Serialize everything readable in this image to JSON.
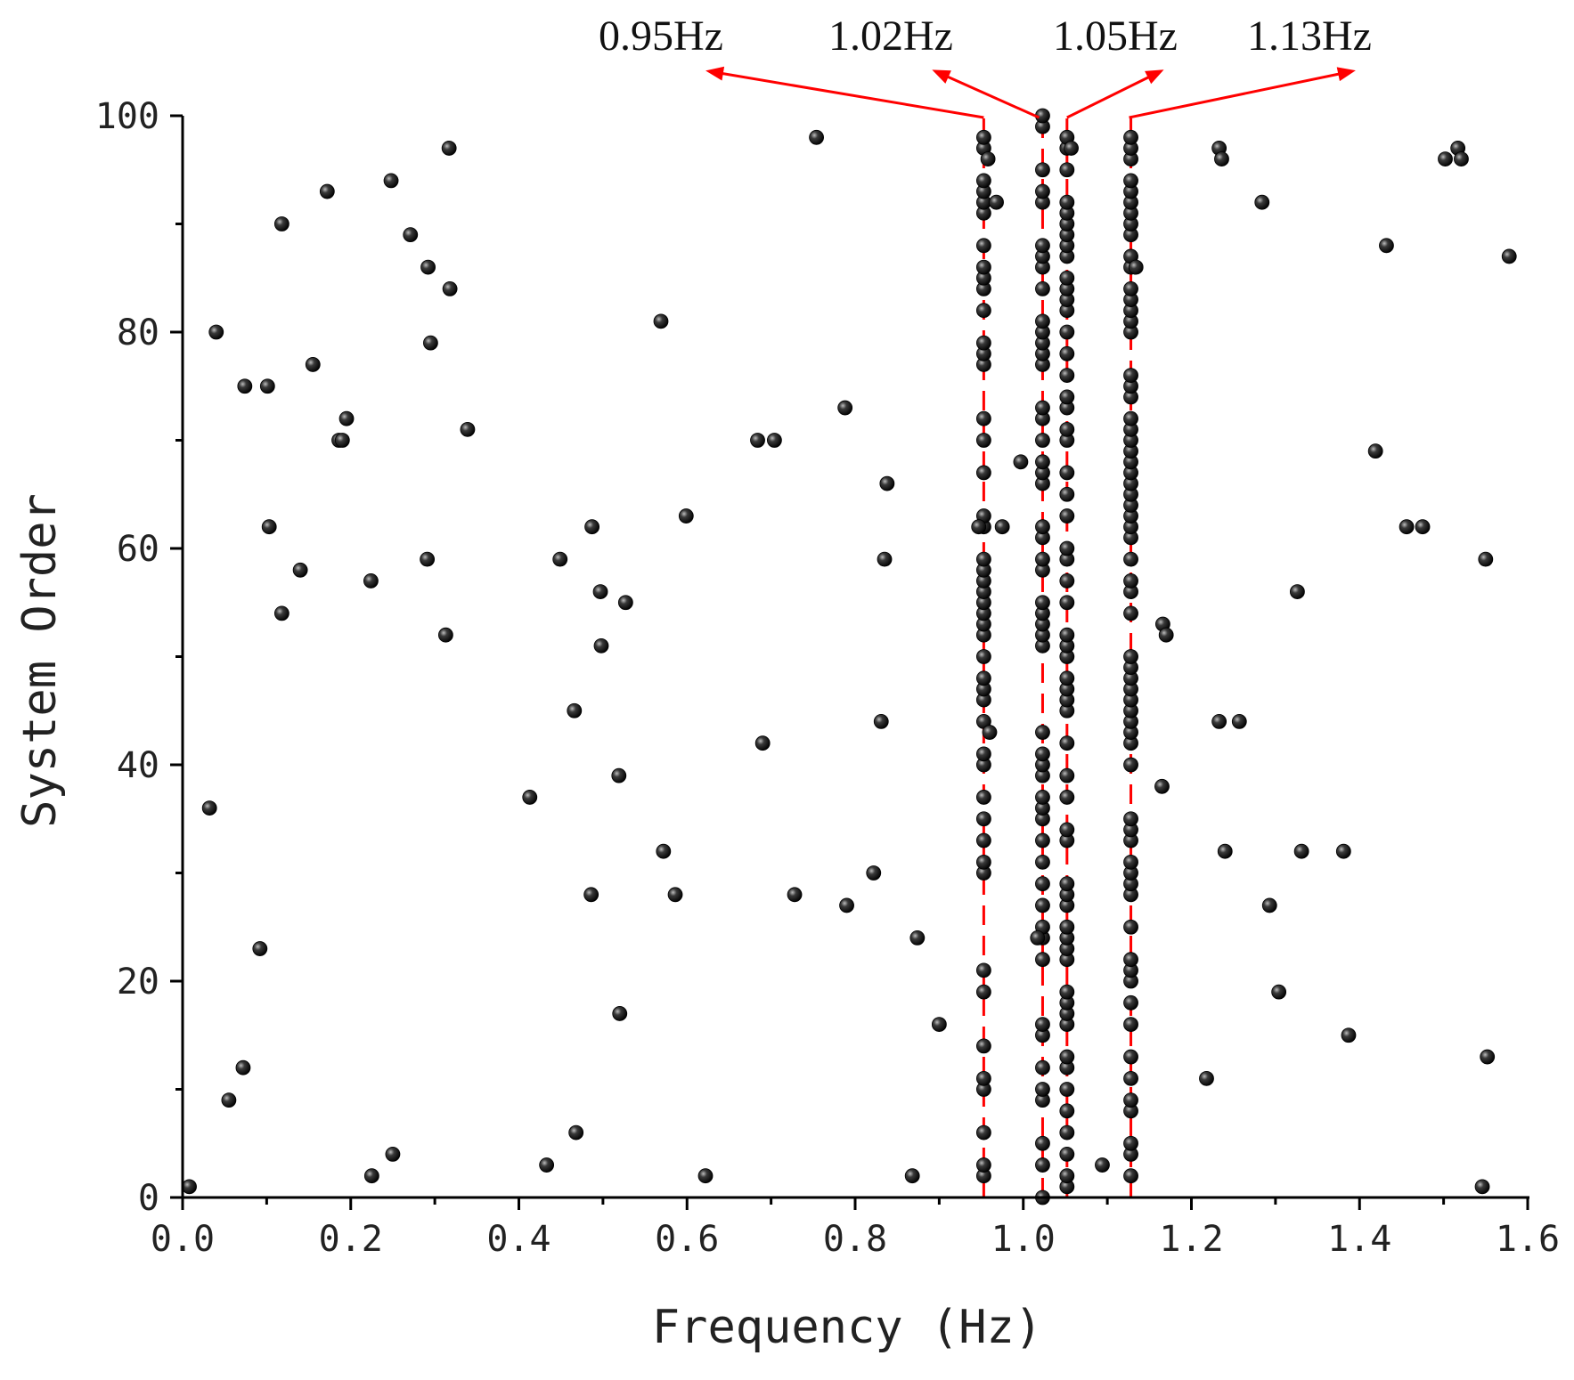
{
  "colors": {
    "point": "#000000",
    "annotation": "#ff0000",
    "axis": "#000000"
  },
  "chart_data": {
    "type": "scatter",
    "xlabel": "Frequency (Hz)",
    "ylabel": "System Order",
    "xlim": [
      0,
      1.6
    ],
    "ylim": [
      0,
      100
    ],
    "xticks": [
      "0.0",
      "0.2",
      "0.4",
      "0.6",
      "0.8",
      "1.0",
      "1.2",
      "1.4",
      "1.6"
    ],
    "yticks": [
      "0",
      "20",
      "40",
      "60",
      "80",
      "100"
    ],
    "grid": false,
    "stable_frequencies": [
      {
        "label": "0.95Hz",
        "x": 0.953
      },
      {
        "label": "1.02Hz",
        "x": 1.023
      },
      {
        "label": "1.05Hz",
        "x": 1.052
      },
      {
        "label": "1.13Hz",
        "x": 1.128
      }
    ],
    "stable_orders": {
      "0.953": [
        2,
        3,
        6,
        10,
        11,
        14,
        19,
        21,
        30,
        31,
        33,
        35,
        37,
        40,
        41,
        44,
        46,
        47,
        48,
        50,
        52,
        53,
        54,
        55,
        56,
        57,
        58,
        59,
        62,
        63,
        67,
        70,
        72,
        77,
        78,
        79,
        82,
        84,
        85,
        86,
        88,
        91,
        92,
        93,
        94,
        97,
        98
      ],
      "1.023": [
        0,
        3,
        5,
        9,
        10,
        12,
        15,
        16,
        22,
        24,
        25,
        27,
        29,
        31,
        33,
        35,
        36,
        37,
        39,
        40,
        41,
        43,
        51,
        52,
        53,
        54,
        55,
        58,
        59,
        61,
        62,
        66,
        67,
        68,
        70,
        72,
        73,
        77,
        78,
        79,
        80,
        81,
        84,
        86,
        87,
        88,
        92,
        93,
        95,
        99,
        100
      ],
      "1.052": [
        1,
        2,
        4,
        6,
        8,
        10,
        12,
        13,
        16,
        17,
        18,
        19,
        22,
        23,
        24,
        25,
        27,
        28,
        29,
        33,
        34,
        37,
        39,
        42,
        45,
        46,
        47,
        48,
        50,
        51,
        52,
        55,
        57,
        59,
        60,
        63,
        65,
        67,
        70,
        71,
        73,
        74,
        76,
        78,
        80,
        82,
        83,
        84,
        85,
        87,
        88,
        89,
        90,
        91,
        92,
        95,
        97,
        98
      ],
      "1.128": [
        2,
        4,
        5,
        8,
        9,
        11,
        13,
        16,
        18,
        20,
        21,
        22,
        25,
        28,
        29,
        30,
        31,
        33,
        34,
        35,
        40,
        42,
        43,
        44,
        45,
        46,
        47,
        48,
        49,
        50,
        54,
        56,
        57,
        59,
        61,
        62,
        63,
        64,
        65,
        66,
        67,
        68,
        69,
        70,
        71,
        72,
        74,
        75,
        76,
        80,
        81,
        82,
        83,
        84,
        86,
        87,
        89,
        90,
        91,
        92,
        93,
        94,
        96,
        97,
        98
      ]
    },
    "scattered_points": [
      [
        0.008,
        1
      ],
      [
        0.032,
        36
      ],
      [
        0.04,
        80
      ],
      [
        0.055,
        9
      ],
      [
        0.072,
        12
      ],
      [
        0.074,
        75
      ],
      [
        0.092,
        23
      ],
      [
        0.101,
        75
      ],
      [
        0.103,
        62
      ],
      [
        0.118,
        54
      ],
      [
        0.118,
        90
      ],
      [
        0.14,
        58
      ],
      [
        0.155,
        77
      ],
      [
        0.172,
        93
      ],
      [
        0.186,
        70
      ],
      [
        0.19,
        70
      ],
      [
        0.195,
        72
      ],
      [
        0.224,
        57
      ],
      [
        0.225,
        2
      ],
      [
        0.248,
        94
      ],
      [
        0.25,
        4
      ],
      [
        0.271,
        89
      ],
      [
        0.291,
        59
      ],
      [
        0.292,
        86
      ],
      [
        0.295,
        79
      ],
      [
        0.313,
        52
      ],
      [
        0.317,
        97
      ],
      [
        0.318,
        84
      ],
      [
        0.339,
        71
      ],
      [
        0.413,
        37
      ],
      [
        0.433,
        3
      ],
      [
        0.449,
        59
      ],
      [
        0.466,
        45
      ],
      [
        0.468,
        6
      ],
      [
        0.486,
        28
      ],
      [
        0.487,
        62
      ],
      [
        0.497,
        56
      ],
      [
        0.498,
        51
      ],
      [
        0.519,
        39
      ],
      [
        0.52,
        17
      ],
      [
        0.527,
        55
      ],
      [
        0.569,
        81
      ],
      [
        0.572,
        32
      ],
      [
        0.586,
        28
      ],
      [
        0.599,
        63
      ],
      [
        0.622,
        2
      ],
      [
        0.684,
        70
      ],
      [
        0.69,
        42
      ],
      [
        0.704,
        70
      ],
      [
        0.728,
        28
      ],
      [
        0.754,
        98
      ],
      [
        0.788,
        73
      ],
      [
        0.79,
        27
      ],
      [
        0.822,
        30
      ],
      [
        0.831,
        44
      ],
      [
        0.835,
        59
      ],
      [
        0.838,
        66
      ],
      [
        0.868,
        2
      ],
      [
        0.874,
        24
      ],
      [
        0.9,
        16
      ],
      [
        0.947,
        62
      ],
      [
        0.958,
        96
      ],
      [
        0.96,
        43
      ],
      [
        0.968,
        92
      ],
      [
        0.975,
        62
      ],
      [
        0.997,
        68
      ],
      [
        1.017,
        24
      ],
      [
        1.057,
        97
      ],
      [
        1.094,
        3
      ],
      [
        1.134,
        86
      ],
      [
        1.165,
        38
      ],
      [
        1.166,
        53
      ],
      [
        1.17,
        52
      ],
      [
        1.218,
        11
      ],
      [
        1.233,
        97
      ],
      [
        1.233,
        44
      ],
      [
        1.236,
        96
      ],
      [
        1.24,
        32
      ],
      [
        1.257,
        44
      ],
      [
        1.284,
        92
      ],
      [
        1.293,
        27
      ],
      [
        1.304,
        19
      ],
      [
        1.326,
        56
      ],
      [
        1.331,
        32
      ],
      [
        1.381,
        32
      ],
      [
        1.387,
        15
      ],
      [
        1.419,
        69
      ],
      [
        1.432,
        88
      ],
      [
        1.456,
        62
      ],
      [
        1.475,
        62
      ],
      [
        1.502,
        96
      ],
      [
        1.517,
        97
      ],
      [
        1.521,
        96
      ],
      [
        1.546,
        1
      ],
      [
        1.55,
        59
      ],
      [
        1.552,
        13
      ],
      [
        1.578,
        87
      ]
    ]
  }
}
